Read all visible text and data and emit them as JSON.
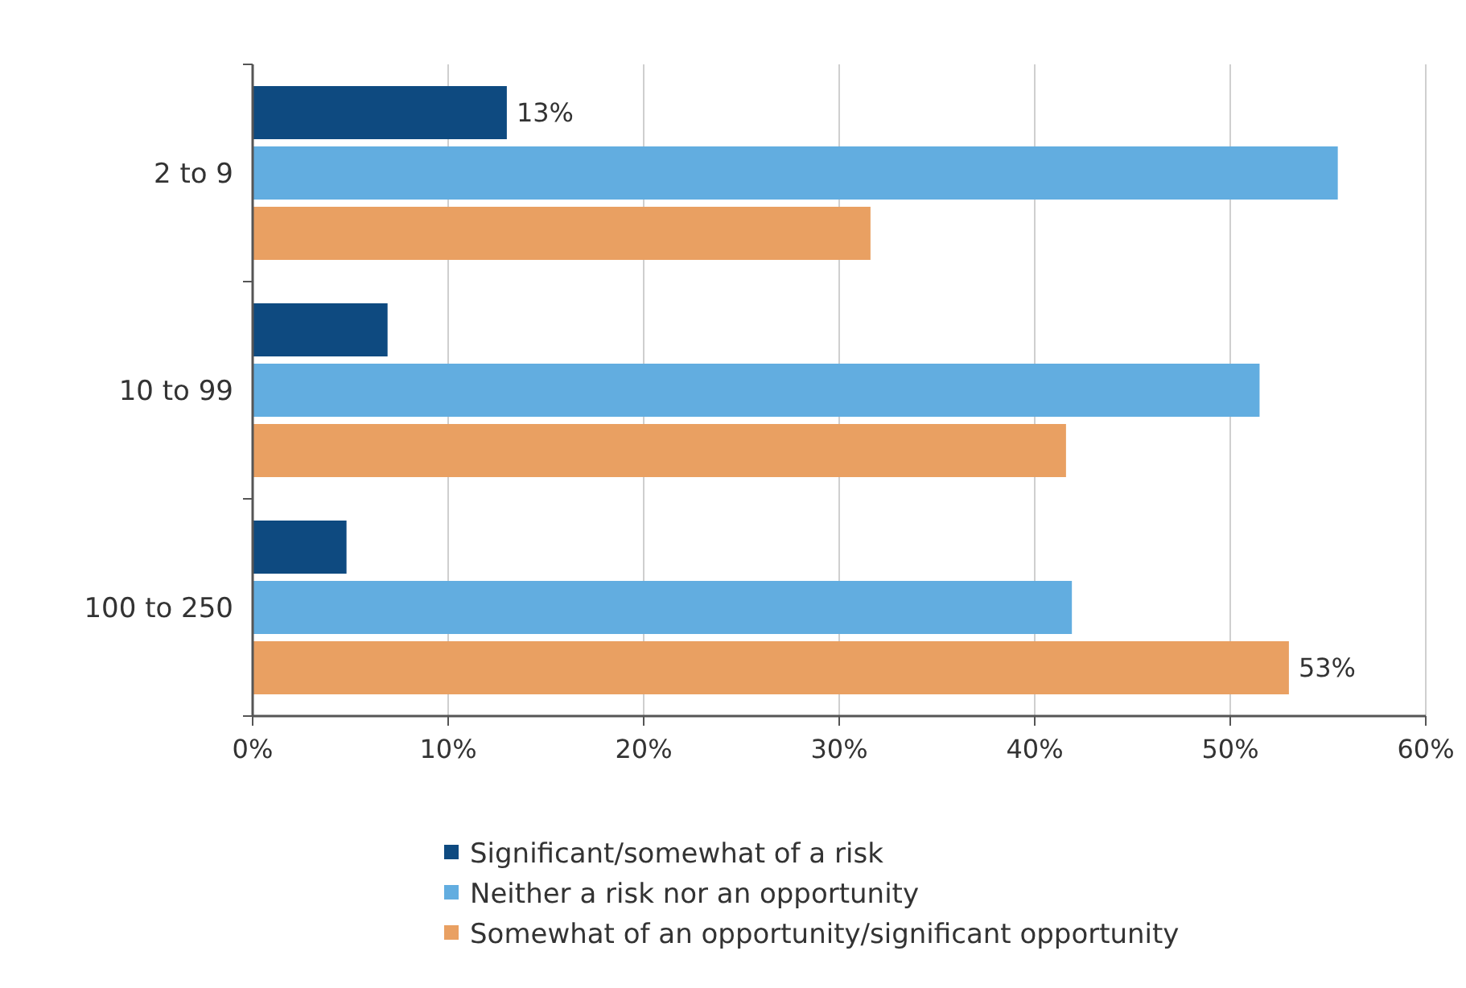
{
  "chart_data": {
    "type": "bar",
    "orientation": "horizontal",
    "categories": [
      "2 to 9",
      "10 to 99",
      "100 to 250"
    ],
    "series": [
      {
        "name": "Significant/somewhat of a risk",
        "color": "#0e4a80",
        "values": [
          13,
          6.9,
          4.8
        ],
        "value_labels": [
          "13%",
          null,
          null
        ]
      },
      {
        "name": "Neither a risk nor an opportunity",
        "color": "#62ade0",
        "values": [
          55.5,
          51.5,
          41.9
        ],
        "value_labels": [
          null,
          null,
          null
        ]
      },
      {
        "name": "Somewhat of an opportunity/significant opportunity",
        "color": "#e9a062",
        "values": [
          31.6,
          41.6,
          53
        ],
        "value_labels": [
          null,
          null,
          "53%"
        ]
      }
    ],
    "xlim": [
      0,
      60
    ],
    "xticks": [
      {
        "value": 0,
        "label": "0%"
      },
      {
        "value": 10,
        "label": "10%"
      },
      {
        "value": 20,
        "label": "20%"
      },
      {
        "value": 30,
        "label": "30%"
      },
      {
        "value": 40,
        "label": "40%"
      },
      {
        "value": 50,
        "label": "50%"
      },
      {
        "value": 60,
        "label": "60%"
      }
    ],
    "grid": "x",
    "legend": "bottom"
  }
}
